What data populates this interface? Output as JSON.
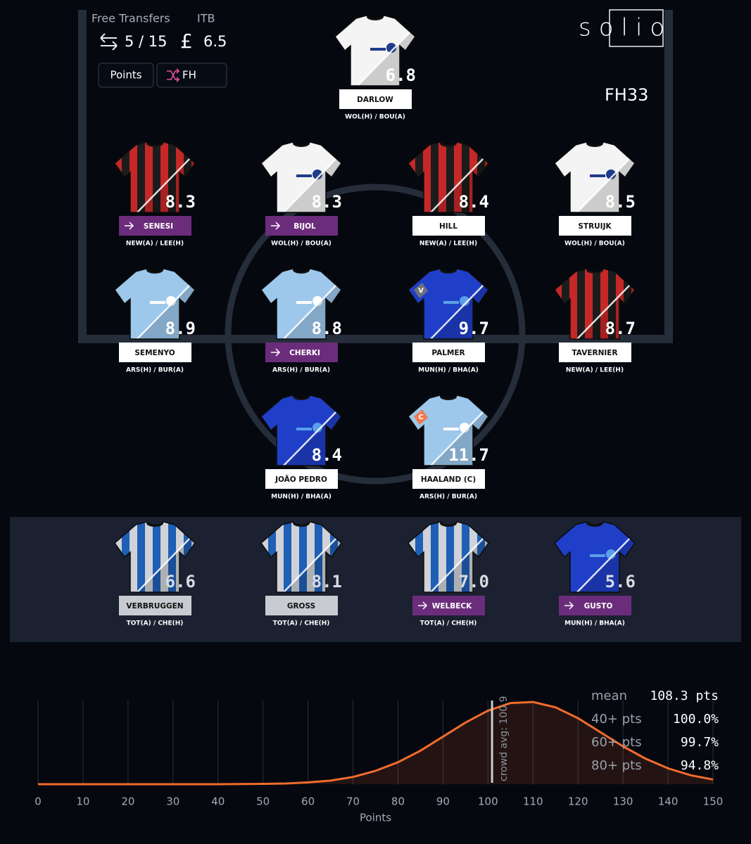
{
  "header": {
    "free_transfers_label": "Free Transfers",
    "free_transfers": "5 / 15",
    "itb_label": "ITB",
    "currency": "£",
    "itb": 6.5,
    "buttons": [
      "Points",
      "FH"
    ],
    "logo": "solio",
    "gameweek": "FH33"
  },
  "pitch": [
    [
      {
        "name": "DARLOW",
        "fixtures": "WOL(H) / BOU(A)",
        "points": 6.8,
        "transfer_in": false,
        "shirt": {
          "color": "#f4f4f4",
          "trim": "#1f3c8a"
        }
      }
    ],
    [
      {
        "name": "SENESI",
        "fixtures": "NEW(A) / LEE(H)",
        "points": 8.3,
        "transfer_in": true,
        "shirt": {
          "color": "#c62828",
          "stripes": "#1c1c1c"
        }
      },
      {
        "name": "BIJOL",
        "fixtures": "WOL(H) / BOU(A)",
        "points": 8.3,
        "transfer_in": true,
        "shirt": {
          "color": "#f4f4f4",
          "trim": "#1f3c8a"
        }
      },
      {
        "name": "HILL",
        "fixtures": "NEW(A) / LEE(H)",
        "points": 8.4,
        "transfer_in": false,
        "shirt": {
          "color": "#c62828",
          "stripes": "#1c1c1c"
        }
      },
      {
        "name": "STRUIJK",
        "fixtures": "WOL(H) / BOU(A)",
        "points": 8.5,
        "transfer_in": false,
        "shirt": {
          "color": "#f4f4f4",
          "trim": "#1f3c8a"
        }
      }
    ],
    [
      {
        "name": "SEMENYO",
        "fixtures": "ARS(H) / BUR(A)",
        "points": 8.9,
        "transfer_in": false,
        "shirt": {
          "color": "#9dc8ec",
          "trim": "#ffffff"
        }
      },
      {
        "name": "CHERKI",
        "fixtures": "ARS(H) / BUR(A)",
        "points": 8.8,
        "transfer_in": true,
        "shirt": {
          "color": "#9dc8ec",
          "trim": "#ffffff"
        }
      },
      {
        "name": "PALMER",
        "fixtures": "MUN(H) / BHA(A)",
        "points": 9.7,
        "transfer_in": false,
        "badge": "V",
        "shirt": {
          "color": "#1f3fc8",
          "trim": "#5aa0e8"
        }
      },
      {
        "name": "TAVERNIER",
        "fixtures": "NEW(A) / LEE(H)",
        "points": 8.7,
        "transfer_in": false,
        "shirt": {
          "color": "#c62828",
          "stripes": "#1c1c1c"
        }
      }
    ],
    [
      {
        "name": "JOÃO PEDRO",
        "fixtures": "MUN(H) / BHA(A)",
        "points": 8.4,
        "transfer_in": false,
        "shirt": {
          "color": "#1f3fc8",
          "trim": "#5aa0e8"
        }
      },
      {
        "name": "HAALAND   (C)",
        "fixtures": "ARS(H) / BUR(A)",
        "points": 11.7,
        "transfer_in": false,
        "badge": "C",
        "shirt": {
          "color": "#9dc8ec",
          "trim": "#ffffff"
        }
      }
    ]
  ],
  "bench": [
    {
      "name": "VERBRUGGEN",
      "fixtures": "TOT(A) / CHE(H)",
      "points": 6.6,
      "transfer_in": false,
      "shirt": {
        "color": "#cfd2d6",
        "stripes": "#1f5fb5"
      }
    },
    {
      "name": "GROSS",
      "fixtures": "TOT(A) / CHE(H)",
      "points": 8.1,
      "transfer_in": false,
      "shirt": {
        "color": "#cfd2d6",
        "stripes": "#1f5fb5"
      }
    },
    {
      "name": "WELBECK",
      "fixtures": "TOT(A) / CHE(H)",
      "points": 7,
      "points_label": "7.0",
      "transfer_in": true,
      "shirt": {
        "color": "#cfd2d6",
        "stripes": "#1f5fb5"
      }
    },
    {
      "name": "GUSTO",
      "fixtures": "MUN(H) / BHA(A)",
      "points": 5.6,
      "transfer_in": true,
      "shirt": {
        "color": "#1f3fc8",
        "trim": "#5aa0e8"
      }
    }
  ],
  "chart_data": {
    "type": "area",
    "x": [
      0,
      10,
      20,
      30,
      40,
      50,
      55,
      60,
      65,
      70,
      75,
      80,
      85,
      90,
      95,
      100,
      105,
      110,
      115,
      120,
      125,
      130,
      135,
      140,
      145,
      150
    ],
    "values": [
      0,
      0,
      0,
      0,
      0,
      0.0001,
      0.0002,
      0.0005,
      0.001,
      0.002,
      0.0037,
      0.0061,
      0.0093,
      0.0132,
      0.0171,
      0.0204,
      0.0225,
      0.0228,
      0.0213,
      0.0183,
      0.0144,
      0.0105,
      0.0071,
      0.0044,
      0.0025,
      0.0013
    ],
    "color": "#f26b2c",
    "xlim": [
      0,
      150
    ],
    "xticks": [
      0,
      10,
      20,
      30,
      40,
      50,
      60,
      70,
      80,
      90,
      100,
      110,
      120,
      130,
      140,
      150
    ],
    "ylim": [
      0,
      0.0232
    ],
    "xlabel": "Points",
    "grid": true,
    "annotations": [
      {
        "label": "crowd avg: 100.9",
        "x": 100.9
      }
    ],
    "stats": [
      {
        "label": "mean",
        "value": "108.3 pts"
      },
      {
        "label": "40+ pts",
        "value": "100.0%"
      },
      {
        "label": "60+ pts",
        "value": "99.7%"
      },
      {
        "label": "80+ pts",
        "value": "94.8%"
      }
    ]
  }
}
